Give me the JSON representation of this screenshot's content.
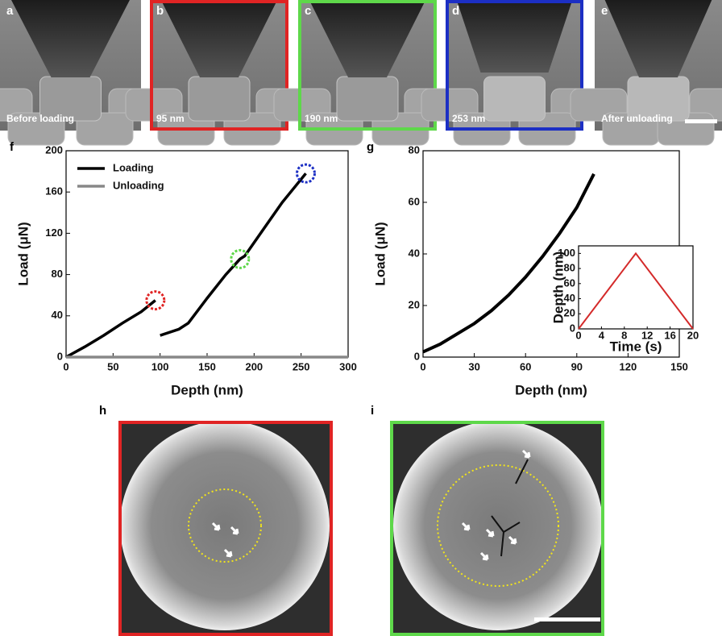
{
  "panels": [
    {
      "label": "a",
      "caption": "Before loading"
    },
    {
      "label": "b",
      "caption": "95 nm",
      "border_color": "#e02424"
    },
    {
      "label": "c",
      "caption": "190 nm",
      "border_color": "#5ed84a"
    },
    {
      "label": "d",
      "caption": "253 nm",
      "border_color": "#1c2fc4"
    },
    {
      "label": "e",
      "caption": "After unloading"
    }
  ],
  "bottom_panels": [
    {
      "label": "h",
      "border_color": "#e02424"
    },
    {
      "label": "i",
      "border_color": "#5ed84a"
    }
  ],
  "chart_data": [
    {
      "type": "line",
      "panel_label": "f",
      "x_label": "Depth (nm)",
      "y_label": "Load (μN)",
      "xlim": [
        0,
        300
      ],
      "xticks": [
        0,
        50,
        100,
        150,
        200,
        250,
        300
      ],
      "ylim": [
        0,
        200
      ],
      "yticks": [
        0,
        40,
        80,
        120,
        160,
        200
      ],
      "legend": "upper left",
      "series": [
        {
          "name": "Loading",
          "color": "#000000",
          "x": [
            0,
            20,
            40,
            60,
            80,
            95,
            97,
            100,
            120,
            130,
            150,
            170,
            185,
            190,
            210,
            230,
            255
          ],
          "values": [
            0,
            10,
            21,
            33,
            44,
            55,
            null,
            21,
            27,
            33,
            57,
            80,
            95,
            98,
            124,
            150,
            178
          ]
        },
        {
          "name": "Unloading",
          "color": "#888888",
          "x": [
            0,
            300
          ],
          "values": [
            0,
            0
          ]
        }
      ]
    },
    {
      "type": "line",
      "panel_label": "g",
      "x_label": "Depth (nm)",
      "y_label": "Load (μN)",
      "xlim": [
        0,
        150
      ],
      "xticks": [
        0,
        30,
        60,
        90,
        120,
        150
      ],
      "ylim": [
        0,
        80
      ],
      "yticks": [
        0,
        20,
        40,
        60,
        80
      ],
      "series": [
        {
          "color": "#000000",
          "x": [
            0,
            10,
            20,
            30,
            40,
            50,
            60,
            70,
            80,
            90,
            100
          ],
          "values": [
            2,
            5,
            9,
            13,
            18,
            24,
            31,
            39,
            48,
            58,
            71
          ]
        }
      ]
    },
    {
      "type": "line",
      "x_label": "Time (s)",
      "y_label": "Depth (nm)",
      "xlim": [
        0,
        20
      ],
      "xticks": [
        0,
        4,
        8,
        12,
        16,
        20
      ],
      "ylim": [
        0,
        110
      ],
      "yticks": [
        0,
        20,
        40,
        60,
        80,
        100
      ],
      "series": [
        {
          "color": "#d42a2a",
          "x": [
            0,
            10,
            20
          ],
          "values": [
            0,
            100,
            0
          ]
        }
      ]
    }
  ]
}
